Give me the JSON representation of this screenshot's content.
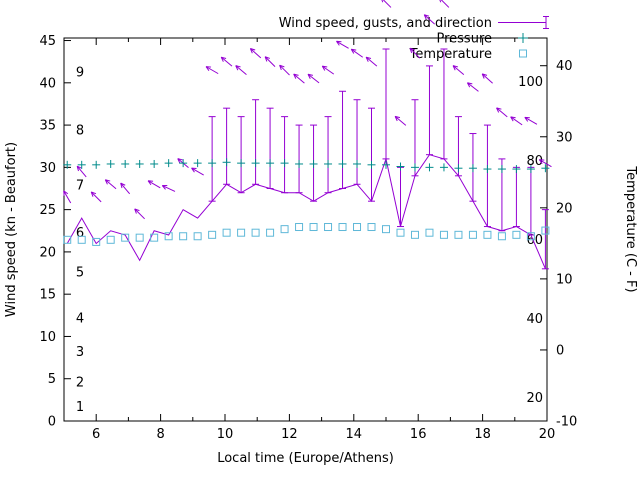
{
  "figure": {
    "xlabel": "Local time (Europe/Athens)",
    "ylabel_left": "Wind speed (kn - Beaufort)",
    "ylabel_right": "Temperature (C - F)",
    "legend": [
      {
        "label": "Wind speed, gusts, and direction",
        "series": "wind"
      },
      {
        "label": "Pressure",
        "series": "pressure"
      },
      {
        "label": "Temperature",
        "series": "temperature"
      }
    ],
    "colors": {
      "wind": "#9400d3",
      "pressure": "#008b8b",
      "temperature": "#5fb8d8",
      "axis": "#000000"
    }
  },
  "chart_data": {
    "type": "line",
    "title": "",
    "x": [
      5.1,
      5.55,
      6.0,
      6.45,
      6.9,
      7.35,
      7.8,
      8.25,
      8.7,
      9.15,
      9.6,
      10.05,
      10.5,
      10.95,
      11.4,
      11.85,
      12.3,
      12.75,
      13.2,
      13.65,
      14.1,
      14.55,
      15.0,
      15.45,
      15.9,
      16.35,
      16.8,
      17.25,
      17.7,
      18.15,
      18.6,
      19.05,
      19.5,
      19.95
    ],
    "series": [
      {
        "name": "wind_speed_kn",
        "values": [
          21,
          24,
          21,
          22.5,
          22,
          19,
          22.5,
          22,
          25,
          24,
          26,
          28,
          27,
          28,
          27.5,
          27,
          27,
          26,
          27,
          27.5,
          28,
          26,
          31,
          23,
          29,
          31.5,
          31,
          29,
          26,
          23,
          22.5,
          23,
          22,
          18
        ]
      },
      {
        "name": "gust_kn",
        "values": [
          21,
          24,
          21,
          22.5,
          22,
          19,
          22.5,
          22,
          25,
          24,
          36,
          37,
          36,
          38,
          37,
          36,
          35,
          35,
          36,
          39,
          38,
          37,
          44,
          30,
          38,
          42,
          44,
          36,
          34,
          35,
          31,
          30,
          30,
          25
        ]
      },
      {
        "name": "pressure_left_axis_units",
        "values": [
          30.3,
          30.3,
          30.3,
          30.4,
          30.4,
          30.4,
          30.4,
          30.5,
          30.5,
          30.5,
          30.5,
          30.6,
          30.5,
          30.5,
          30.5,
          30.5,
          30.4,
          30.4,
          30.4,
          30.4,
          30.4,
          30.3,
          30.3,
          30.1,
          30.0,
          30.0,
          30.0,
          29.9,
          29.9,
          29.8,
          29.8,
          29.8,
          29.8,
          29.9
        ]
      },
      {
        "name": "temperature_c",
        "values": [
          15.5,
          15.5,
          15.2,
          15.5,
          15.8,
          15.8,
          15.8,
          16.0,
          16.0,
          16.0,
          16.2,
          16.5,
          16.5,
          16.5,
          16.5,
          17.0,
          17.3,
          17.3,
          17.3,
          17.3,
          17.3,
          17.3,
          17.0,
          16.5,
          16.2,
          16.5,
          16.2,
          16.2,
          16.2,
          16.2,
          16.0,
          16.2,
          16.0,
          16.8
        ]
      },
      {
        "name": "wind_direction_angle_deg",
        "values": [
          120,
          130,
          135,
          140,
          130,
          135,
          150,
          155,
          140,
          150,
          150,
          140,
          140,
          138,
          135,
          135,
          140,
          142,
          145,
          150,
          145,
          140,
          135,
          140,
          135,
          138,
          135,
          140,
          142,
          138,
          140,
          145,
          150,
          150
        ]
      }
    ],
    "axes": {
      "x": {
        "label": "Local time (Europe/Athens)",
        "range": [
          5,
          20
        ],
        "ticks": [
          6,
          8,
          10,
          12,
          14,
          16,
          18,
          20
        ],
        "minor_ticks": [
          7,
          9,
          11,
          13,
          15,
          17,
          19
        ]
      },
      "y_left": {
        "label": "Wind speed (kn - Beaufort)",
        "range": [
          0,
          45.3
        ],
        "ticks": [
          0,
          5,
          10,
          15,
          20,
          25,
          30,
          35,
          40,
          45
        ]
      },
      "y_right": {
        "label": "Temperature (C - F)",
        "range_c": [
          -10,
          43.9
        ],
        "ticks_c": [
          -10,
          0,
          10,
          20,
          30,
          40
        ]
      },
      "beaufort_labels": [
        {
          "label": "1",
          "kn": 1.7
        },
        {
          "label": "2",
          "kn": 4.6
        },
        {
          "label": "3",
          "kn": 8.2
        },
        {
          "label": "4",
          "kn": 12.2
        },
        {
          "label": "5",
          "kn": 17.6
        },
        {
          "label": "6",
          "kn": 22.3
        },
        {
          "label": "7",
          "kn": 27.9
        },
        {
          "label": "8",
          "kn": 34.4
        },
        {
          "label": "9",
          "kn": 41.3
        }
      ],
      "fahrenheit_labels": [
        {
          "label": "20",
          "f": 20
        },
        {
          "label": "40",
          "f": 40
        },
        {
          "label": "60",
          "f": 60
        },
        {
          "label": "80",
          "f": 80
        },
        {
          "label": "100",
          "f": 100
        }
      ],
      "grid": false,
      "legend_position": "top-right-inside"
    }
  }
}
